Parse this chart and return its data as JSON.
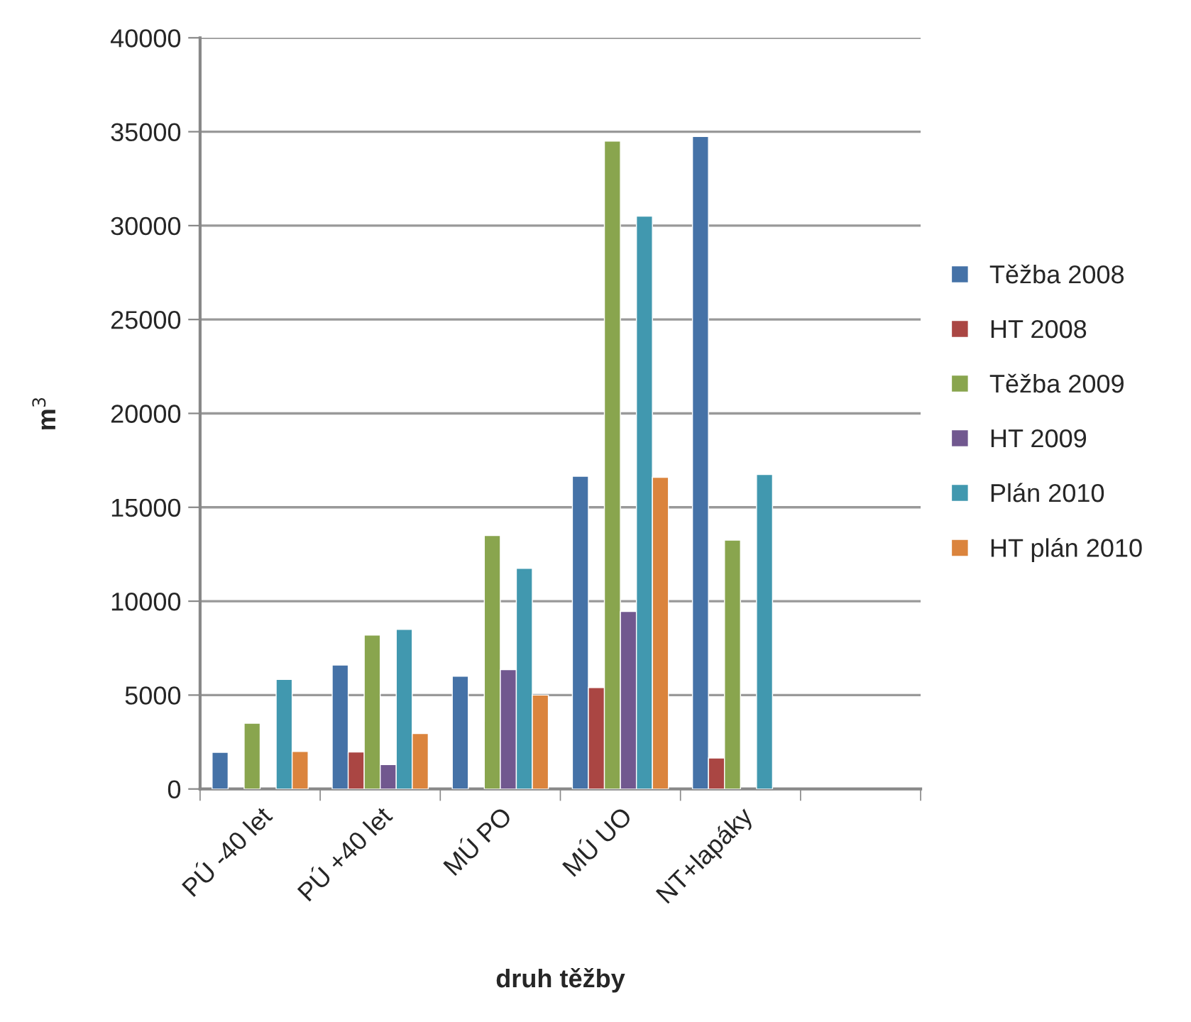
{
  "chart_data": {
    "type": "bar",
    "xlabel": "druh těžby",
    "ylabel": "m$^{3}$",
    "categories": [
      "PÚ -40 let",
      "PÚ +40 let",
      "MÚ PO",
      "MÚ UO",
      "NT+lapáky",
      null
    ],
    "series": [
      {
        "name": "Těžba 2008",
        "color": "#4572a7",
        "values": [
          1950,
          6600,
          6000,
          16650,
          34750,
          null
        ]
      },
      {
        "name": "HT 2008",
        "color": "#aa4643",
        "values": [
          null,
          1970,
          null,
          5400,
          1650,
          null
        ]
      },
      {
        "name": "Těžba 2009",
        "color": "#89a54e",
        "values": [
          3500,
          8200,
          13500,
          34500,
          13250,
          null
        ]
      },
      {
        "name": "HT 2009",
        "color": "#71588f",
        "values": [
          null,
          1300,
          6350,
          9450,
          null,
          null
        ]
      },
      {
        "name": "Plán 2010",
        "color": "#4198af",
        "values": [
          5830,
          8500,
          11750,
          30500,
          16750,
          null
        ]
      },
      {
        "name": "HT plán 2010",
        "color": "#db843d",
        "values": [
          2000,
          2950,
          5000,
          16600,
          null,
          null
        ]
      }
    ],
    "ylim": [
      0,
      40000
    ],
    "yticks": [
      0,
      5000,
      10000,
      15000,
      20000,
      25000,
      30000,
      35000,
      40000
    ],
    "grid": "y",
    "legend": "right"
  }
}
